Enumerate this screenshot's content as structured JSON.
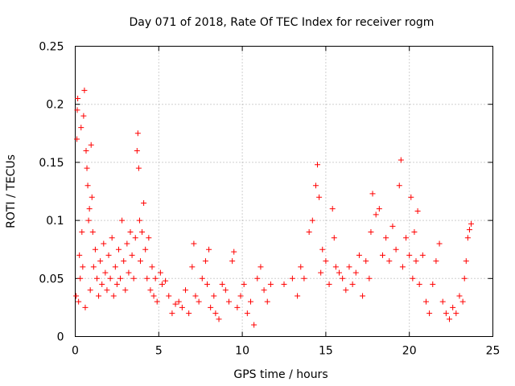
{
  "chart_data": {
    "type": "scatter",
    "title": "Day 071 of 2018, Rate Of TEC Index for receiver rogm",
    "xlabel": "GPS time / hours",
    "ylabel": "ROTI / TECUs",
    "xlim": [
      0,
      25
    ],
    "ylim": [
      0,
      0.25
    ],
    "x_ticks": [
      0,
      5,
      10,
      15,
      20,
      25
    ],
    "x_tick_labels": [
      "0",
      "5",
      "10",
      "15",
      "20",
      "25"
    ],
    "y_ticks": [
      0,
      0.05,
      0.1,
      0.15,
      0.2,
      0.25
    ],
    "y_tick_labels": [
      "0",
      "0.05",
      "0.1",
      "0.15",
      "0.2",
      "0.25"
    ],
    "grid": true,
    "marker": "plus",
    "series": [
      {
        "name": "ROTI",
        "color": "#ff0000",
        "points": [
          [
            0.05,
            0.035
          ],
          [
            0.1,
            0.17
          ],
          [
            0.12,
            0.195
          ],
          [
            0.15,
            0.205
          ],
          [
            0.2,
            0.03
          ],
          [
            0.25,
            0.07
          ],
          [
            0.3,
            0.05
          ],
          [
            0.35,
            0.18
          ],
          [
            0.4,
            0.09
          ],
          [
            0.45,
            0.06
          ],
          [
            0.5,
            0.19
          ],
          [
            0.55,
            0.212
          ],
          [
            0.6,
            0.025
          ],
          [
            0.65,
            0.16
          ],
          [
            0.7,
            0.145
          ],
          [
            0.75,
            0.13
          ],
          [
            0.8,
            0.1
          ],
          [
            0.85,
            0.11
          ],
          [
            0.9,
            0.04
          ],
          [
            0.95,
            0.165
          ],
          [
            1.0,
            0.12
          ],
          [
            1.05,
            0.09
          ],
          [
            1.1,
            0.06
          ],
          [
            1.2,
            0.075
          ],
          [
            1.3,
            0.05
          ],
          [
            1.4,
            0.035
          ],
          [
            1.5,
            0.065
          ],
          [
            1.6,
            0.045
          ],
          [
            1.7,
            0.08
          ],
          [
            1.8,
            0.055
          ],
          [
            1.9,
            0.04
          ],
          [
            2.0,
            0.07
          ],
          [
            2.1,
            0.05
          ],
          [
            2.2,
            0.085
          ],
          [
            2.3,
            0.035
          ],
          [
            2.4,
            0.06
          ],
          [
            2.5,
            0.045
          ],
          [
            2.6,
            0.075
          ],
          [
            2.7,
            0.05
          ],
          [
            2.8,
            0.1
          ],
          [
            2.9,
            0.065
          ],
          [
            3.0,
            0.04
          ],
          [
            3.1,
            0.08
          ],
          [
            3.2,
            0.055
          ],
          [
            3.3,
            0.09
          ],
          [
            3.4,
            0.07
          ],
          [
            3.5,
            0.05
          ],
          [
            3.6,
            0.085
          ],
          [
            3.7,
            0.16
          ],
          [
            3.75,
            0.175
          ],
          [
            3.8,
            0.145
          ],
          [
            3.85,
            0.1
          ],
          [
            3.9,
            0.065
          ],
          [
            4.0,
            0.09
          ],
          [
            4.1,
            0.115
          ],
          [
            4.2,
            0.075
          ],
          [
            4.3,
            0.05
          ],
          [
            4.4,
            0.085
          ],
          [
            4.5,
            0.04
          ],
          [
            4.6,
            0.06
          ],
          [
            4.7,
            0.035
          ],
          [
            4.8,
            0.05
          ],
          [
            4.9,
            0.03
          ],
          [
            5.1,
            0.055
          ],
          [
            5.2,
            0.045
          ],
          [
            5.4,
            0.048
          ],
          [
            5.6,
            0.035
          ],
          [
            5.8,
            0.02
          ],
          [
            6.0,
            0.028
          ],
          [
            6.2,
            0.03
          ],
          [
            6.4,
            0.025
          ],
          [
            6.6,
            0.04
          ],
          [
            6.8,
            0.02
          ],
          [
            7.0,
            0.06
          ],
          [
            7.1,
            0.08
          ],
          [
            7.2,
            0.035
          ],
          [
            7.4,
            0.03
          ],
          [
            7.6,
            0.05
          ],
          [
            7.8,
            0.065
          ],
          [
            7.9,
            0.045
          ],
          [
            8.0,
            0.075
          ],
          [
            8.1,
            0.025
          ],
          [
            8.3,
            0.035
          ],
          [
            8.4,
            0.02
          ],
          [
            8.6,
            0.015
          ],
          [
            8.8,
            0.045
          ],
          [
            9.0,
            0.04
          ],
          [
            9.2,
            0.03
          ],
          [
            9.4,
            0.065
          ],
          [
            9.5,
            0.073
          ],
          [
            9.7,
            0.025
          ],
          [
            9.9,
            0.035
          ],
          [
            10.1,
            0.045
          ],
          [
            10.3,
            0.02
          ],
          [
            10.5,
            0.03
          ],
          [
            10.7,
            0.01
          ],
          [
            10.9,
            0.05
          ],
          [
            11.1,
            0.06
          ],
          [
            11.3,
            0.04
          ],
          [
            11.5,
            0.03
          ],
          [
            11.7,
            0.045
          ],
          [
            12.5,
            0.045
          ],
          [
            13.0,
            0.05
          ],
          [
            13.3,
            0.035
          ],
          [
            13.5,
            0.06
          ],
          [
            13.7,
            0.05
          ],
          [
            14.0,
            0.09
          ],
          [
            14.2,
            0.1
          ],
          [
            14.4,
            0.13
          ],
          [
            14.5,
            0.148
          ],
          [
            14.6,
            0.12
          ],
          [
            14.7,
            0.055
          ],
          [
            14.8,
            0.075
          ],
          [
            15.0,
            0.065
          ],
          [
            15.2,
            0.045
          ],
          [
            15.4,
            0.11
          ],
          [
            15.5,
            0.085
          ],
          [
            15.6,
            0.06
          ],
          [
            15.8,
            0.055
          ],
          [
            16.0,
            0.05
          ],
          [
            16.2,
            0.04
          ],
          [
            16.4,
            0.06
          ],
          [
            16.6,
            0.045
          ],
          [
            16.8,
            0.055
          ],
          [
            17.0,
            0.07
          ],
          [
            17.2,
            0.035
          ],
          [
            17.4,
            0.065
          ],
          [
            17.6,
            0.05
          ],
          [
            17.7,
            0.09
          ],
          [
            17.8,
            0.123
          ],
          [
            18.0,
            0.105
          ],
          [
            18.2,
            0.11
          ],
          [
            18.4,
            0.07
          ],
          [
            18.6,
            0.085
          ],
          [
            18.8,
            0.065
          ],
          [
            19.0,
            0.095
          ],
          [
            19.2,
            0.075
          ],
          [
            19.4,
            0.13
          ],
          [
            19.5,
            0.152
          ],
          [
            19.6,
            0.06
          ],
          [
            19.8,
            0.085
          ],
          [
            20.0,
            0.07
          ],
          [
            20.1,
            0.12
          ],
          [
            20.2,
            0.05
          ],
          [
            20.3,
            0.09
          ],
          [
            20.4,
            0.065
          ],
          [
            20.5,
            0.108
          ],
          [
            20.6,
            0.045
          ],
          [
            20.8,
            0.07
          ],
          [
            21.0,
            0.03
          ],
          [
            21.2,
            0.02
          ],
          [
            21.4,
            0.045
          ],
          [
            21.6,
            0.065
          ],
          [
            21.8,
            0.08
          ],
          [
            22.0,
            0.03
          ],
          [
            22.2,
            0.02
          ],
          [
            22.4,
            0.015
          ],
          [
            22.6,
            0.025
          ],
          [
            22.8,
            0.02
          ],
          [
            23.0,
            0.035
          ],
          [
            23.2,
            0.03
          ],
          [
            23.3,
            0.05
          ],
          [
            23.4,
            0.065
          ],
          [
            23.5,
            0.085
          ],
          [
            23.6,
            0.092
          ],
          [
            23.7,
            0.097
          ]
        ]
      }
    ]
  }
}
